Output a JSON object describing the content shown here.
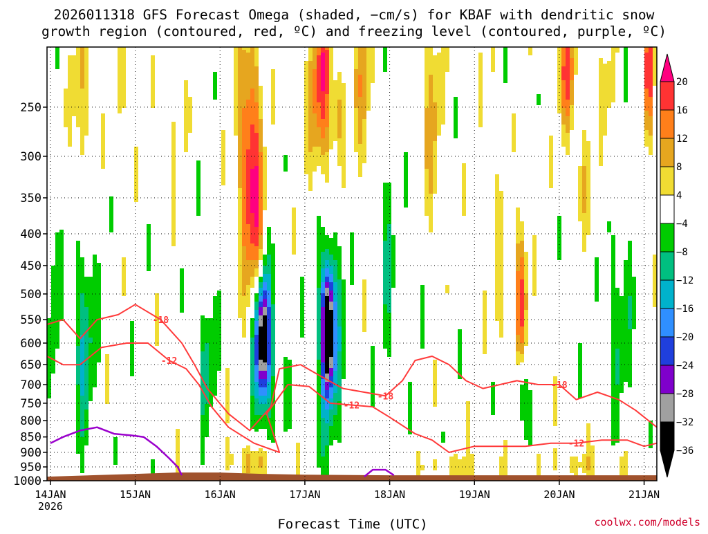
{
  "chart_data": {
    "type": "heatmap",
    "title_line1": "2026011318 GFS Forecast Omega (shaded, −cm/s) for KBAF with dendritic snow",
    "title_line2": "growth region (contoured, red, ºC) and freezing level (contoured, purple, ºC)",
    "xlabel": "Forecast Time (UTC)",
    "ylabel": "",
    "credit": "coolwx.com/models",
    "x_ticks": [
      {
        "day": 14,
        "label": "14JAN",
        "sublabel": "2026"
      },
      {
        "day": 15,
        "label": "15JAN",
        "sublabel": ""
      },
      {
        "day": 16,
        "label": "16JAN",
        "sublabel": ""
      },
      {
        "day": 17,
        "label": "17JAN",
        "sublabel": ""
      },
      {
        "day": 18,
        "label": "18JAN",
        "sublabel": ""
      },
      {
        "day": 19,
        "label": "19JAN",
        "sublabel": ""
      },
      {
        "day": 20,
        "label": "20JAN",
        "sublabel": ""
      },
      {
        "day": 21,
        "label": "21JAN",
        "sublabel": ""
      }
    ],
    "x_range_days": [
      13.96,
      21.15
    ],
    "y_range_hpa": [
      1000,
      200
    ],
    "y_scale": "log",
    "y_ticks": [
      1000,
      950,
      900,
      850,
      800,
      750,
      700,
      650,
      600,
      550,
      500,
      450,
      400,
      350,
      300,
      250
    ],
    "grid": true,
    "colorbar": {
      "position": "right",
      "labels": [
        "20",
        "16",
        "12",
        "8",
        "4",
        "−4",
        "−8",
        "−12",
        "−16",
        "−20",
        "−24",
        "−28",
        "−32",
        "−36"
      ],
      "boundaries": [
        20,
        16,
        12,
        8,
        4,
        -4,
        -8,
        -12,
        -16,
        -20,
        -24,
        -28,
        -32,
        -36
      ],
      "colors": [
        "#ff0080",
        "#ff3333",
        "#ff7f1a",
        "#e6a61f",
        "#f0dc33",
        "#ffffff",
        "#00cc00",
        "#00bf80",
        "#00b2cc",
        "#2f8fff",
        "#1f3fdd",
        "#7f00cc",
        "#a0a0a0",
        "#000000"
      ]
    },
    "omega_blobs": [
      {
        "day": 16.35,
        "p": 300,
        "sd": 0.09,
        "sp": 0.32,
        "a": 20
      },
      {
        "day": 16.45,
        "p": 420,
        "sd": 0.07,
        "sp": 0.22,
        "a": 10
      },
      {
        "day": 17.2,
        "p": 230,
        "sd": 0.1,
        "sp": 0.25,
        "a": 18
      },
      {
        "day": 17.4,
        "p": 260,
        "sd": 0.05,
        "sp": 0.12,
        "a": 8
      },
      {
        "day": 17.7,
        "p": 240,
        "sd": 0.1,
        "sp": 0.25,
        "a": 9
      },
      {
        "day": 14.35,
        "p": 250,
        "sd": 0.07,
        "sp": 0.28,
        "a": 8
      },
      {
        "day": 14.9,
        "p": 240,
        "sd": 0.06,
        "sp": 0.2,
        "a": 7
      },
      {
        "day": 15.5,
        "p": 240,
        "sd": 0.06,
        "sp": 0.2,
        "a": 6
      },
      {
        "day": 18.5,
        "p": 260,
        "sd": 0.09,
        "sp": 0.3,
        "a": 8
      },
      {
        "day": 19.2,
        "p": 270,
        "sd": 0.06,
        "sp": 0.3,
        "a": 5
      },
      {
        "day": 19.55,
        "p": 500,
        "sd": 0.05,
        "sp": 0.2,
        "a": 17
      },
      {
        "day": 19.3,
        "p": 520,
        "sd": 0.04,
        "sp": 0.12,
        "a": 7
      },
      {
        "day": 20.1,
        "p": 220,
        "sd": 0.07,
        "sp": 0.16,
        "a": 16
      },
      {
        "day": 20.6,
        "p": 250,
        "sd": 0.06,
        "sp": 0.2,
        "a": 6
      },
      {
        "day": 21.05,
        "p": 220,
        "sd": 0.04,
        "sp": 0.2,
        "a": 18
      },
      {
        "day": 20.3,
        "p": 330,
        "sd": 0.12,
        "sp": 0.15,
        "a": 5
      },
      {
        "day": 16.5,
        "p": 590,
        "sd": 0.06,
        "sp": 0.16,
        "a": -34
      },
      {
        "day": 16.55,
        "p": 620,
        "sd": 0.13,
        "sp": 0.3,
        "a": -8
      },
      {
        "day": 17.27,
        "p": 570,
        "sd": 0.05,
        "sp": 0.16,
        "a": -38
      },
      {
        "day": 17.3,
        "p": 600,
        "sd": 0.13,
        "sp": 0.33,
        "a": -10
      },
      {
        "day": 14.4,
        "p": 580,
        "sd": 0.09,
        "sp": 0.28,
        "a": -11
      },
      {
        "day": 15.85,
        "p": 640,
        "sd": 0.07,
        "sp": 0.18,
        "a": -9
      },
      {
        "day": 14.05,
        "p": 500,
        "sd": 0.04,
        "sp": 0.35,
        "a": -7
      },
      {
        "day": 17.95,
        "p": 430,
        "sd": 0.07,
        "sp": 0.3,
        "a": -7
      },
      {
        "day": 18.3,
        "p": 400,
        "sd": 0.05,
        "sp": 0.3,
        "a": -6
      },
      {
        "day": 20.7,
        "p": 550,
        "sd": 0.12,
        "sp": 0.28,
        "a": -7
      },
      {
        "day": 19.55,
        "p": 720,
        "sd": 0.05,
        "sp": 0.1,
        "a": -12
      },
      {
        "day": 16.4,
        "p": 930,
        "sd": 0.22,
        "sp": 0.05,
        "a": 9
      },
      {
        "day": 18.8,
        "p": 950,
        "sd": 0.3,
        "sp": 0.04,
        "a": 5
      },
      {
        "day": 20.4,
        "p": 940,
        "sd": 0.4,
        "sp": 0.04,
        "a": 5
      }
    ],
    "dgz_contours": [
      {
        "level": -12,
        "label": "-12",
        "points": [
          [
            13.96,
            630
          ],
          [
            14.15,
            650
          ],
          [
            14.35,
            650
          ],
          [
            14.6,
            610
          ],
          [
            14.9,
            600
          ],
          [
            15.15,
            600
          ],
          [
            15.4,
            640
          ],
          [
            15.6,
            660
          ],
          [
            15.75,
            700
          ],
          [
            15.9,
            760
          ],
          [
            16.1,
            820
          ],
          [
            16.4,
            870
          ],
          [
            16.7,
            900
          ],
          [
            16.55,
            780
          ],
          [
            16.8,
            700
          ],
          [
            17.05,
            705
          ],
          [
            17.3,
            750
          ],
          [
            17.55,
            755
          ],
          [
            17.8,
            760
          ],
          [
            18.0,
            790
          ],
          [
            18.3,
            840
          ],
          [
            18.5,
            860
          ],
          [
            18.7,
            900
          ],
          [
            19.0,
            880
          ],
          [
            19.3,
            880
          ],
          [
            19.6,
            880
          ],
          [
            19.9,
            870
          ],
          [
            20.2,
            870
          ],
          [
            20.5,
            860
          ],
          [
            20.8,
            860
          ],
          [
            21.0,
            880
          ],
          [
            21.15,
            870
          ]
        ]
      },
      {
        "level": -18,
        "label": "-18",
        "points": [
          [
            13.96,
            560
          ],
          [
            14.15,
            550
          ],
          [
            14.35,
            590
          ],
          [
            14.55,
            550
          ],
          [
            14.8,
            540
          ],
          [
            15.0,
            520
          ],
          [
            15.3,
            550
          ],
          [
            15.55,
            600
          ],
          [
            15.7,
            650
          ],
          [
            15.85,
            710
          ],
          [
            16.1,
            780
          ],
          [
            16.35,
            830
          ],
          [
            16.6,
            760
          ],
          [
            16.7,
            660
          ],
          [
            16.95,
            650
          ],
          [
            17.2,
            680
          ],
          [
            17.45,
            710
          ],
          [
            17.7,
            720
          ],
          [
            17.95,
            730
          ],
          [
            18.15,
            690
          ],
          [
            18.3,
            640
          ],
          [
            18.5,
            630
          ],
          [
            18.7,
            650
          ],
          [
            18.9,
            690
          ],
          [
            19.1,
            710
          ],
          [
            19.3,
            700
          ],
          [
            19.5,
            690
          ],
          [
            19.75,
            700
          ],
          [
            20.0,
            700
          ],
          [
            20.2,
            740
          ],
          [
            20.45,
            720
          ],
          [
            20.7,
            740
          ],
          [
            20.9,
            770
          ],
          [
            21.15,
            820
          ]
        ]
      }
    ],
    "freezing_contours": [
      {
        "level": 0,
        "points": [
          [
            14.0,
            870
          ],
          [
            14.15,
            850
          ],
          [
            14.35,
            830
          ],
          [
            14.55,
            820
          ],
          [
            14.75,
            840
          ],
          [
            14.95,
            845
          ],
          [
            15.1,
            850
          ],
          [
            15.25,
            880
          ],
          [
            15.4,
            920
          ],
          [
            15.5,
            950
          ],
          [
            15.55,
            980
          ]
        ]
      },
      {
        "level": 0,
        "points": [
          [
            17.7,
            985
          ],
          [
            17.8,
            960
          ],
          [
            17.95,
            960
          ],
          [
            18.05,
            980
          ]
        ]
      }
    ],
    "ground_hpa": [
      [
        13.96,
        985
      ],
      [
        15.0,
        975
      ],
      [
        15.5,
        970
      ],
      [
        16.0,
        970
      ],
      [
        16.5,
        975
      ],
      [
        17.0,
        978
      ],
      [
        18.0,
        980
      ],
      [
        19.0,
        980
      ],
      [
        20.0,
        980
      ],
      [
        21.15,
        980
      ]
    ]
  }
}
